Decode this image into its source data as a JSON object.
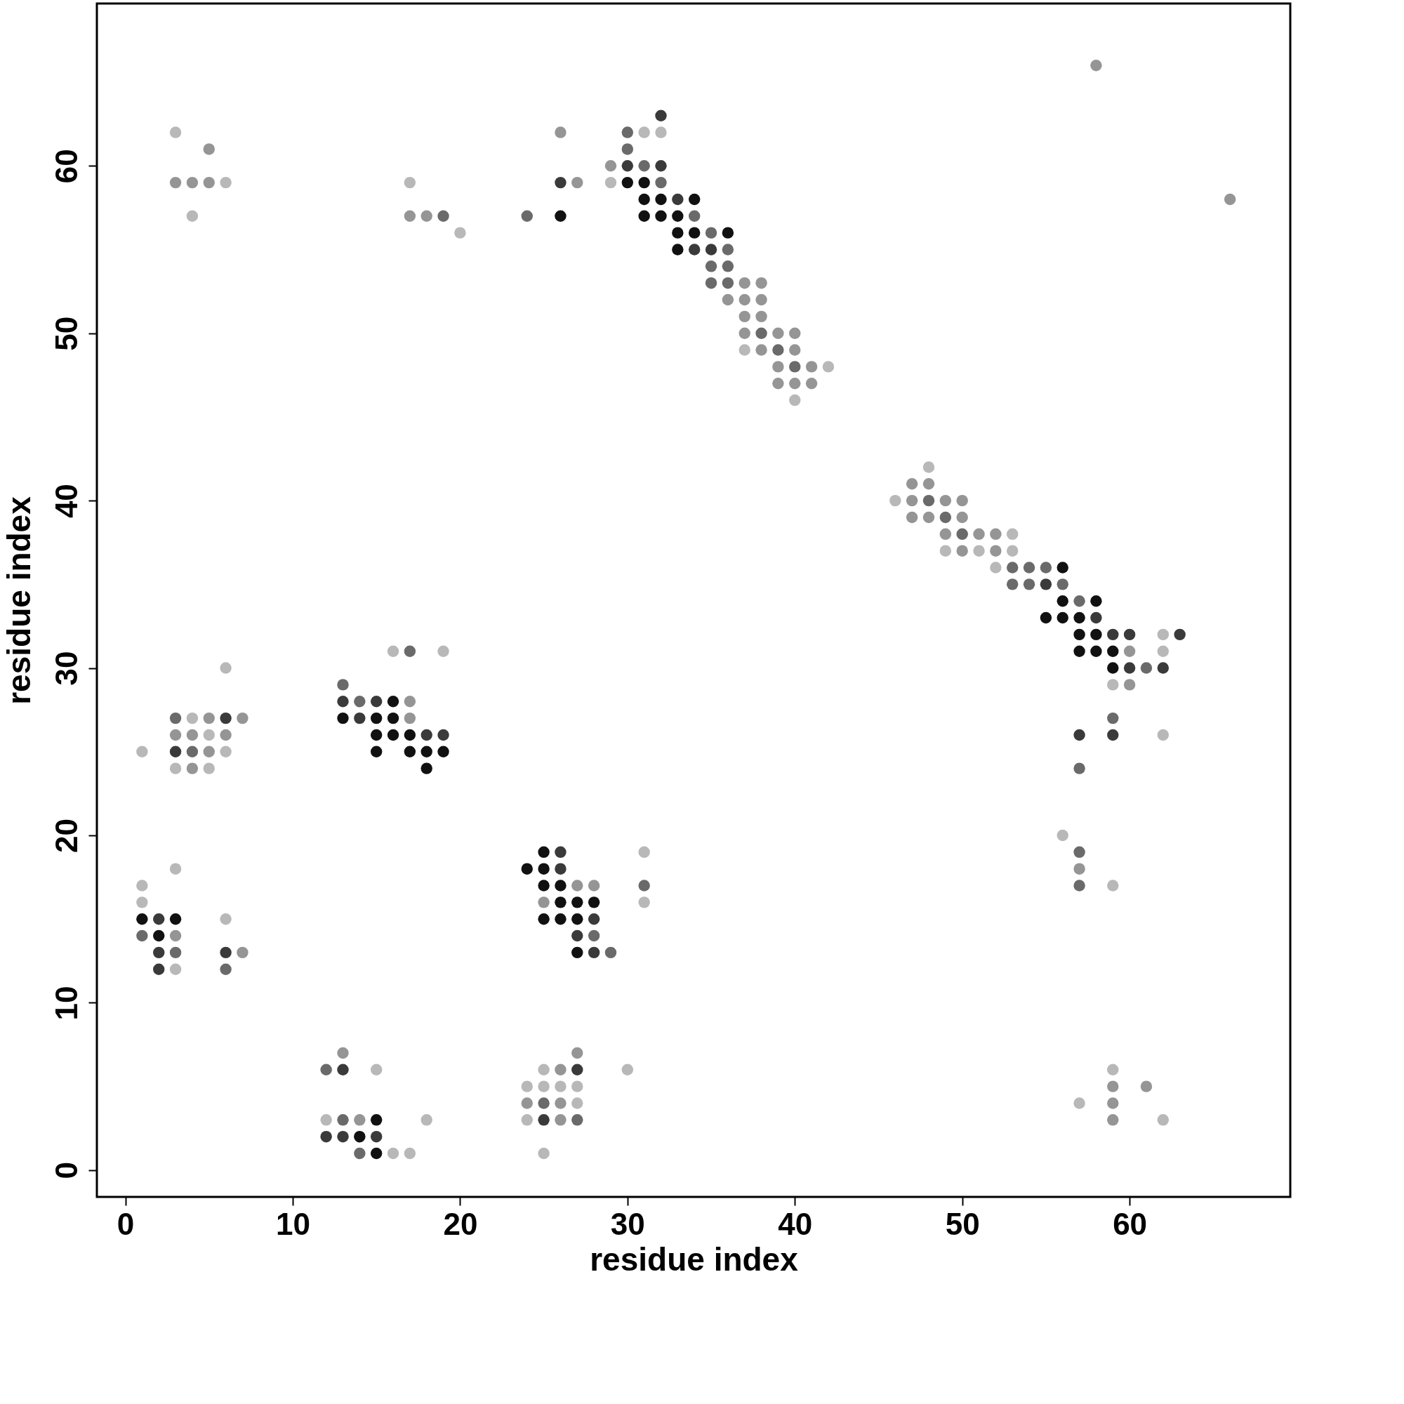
{
  "chart_data": {
    "type": "scatter",
    "xlabel": "residue index",
    "ylabel": "residue index",
    "xlim": [
      -1.7,
      69.6
    ],
    "ylim": [
      -1.6,
      69.7
    ],
    "xticks": [
      0,
      10,
      20,
      30,
      40,
      50,
      60
    ],
    "yticks": [
      0,
      10,
      20,
      30,
      40,
      50,
      60
    ],
    "grid": false,
    "legend": false,
    "marker": "circle",
    "series": [
      {
        "color": "#111111",
        "x": [
          26,
          30,
          31,
          31,
          32,
          34,
          31,
          32,
          33,
          33,
          34,
          36,
          33,
          56,
          56,
          58,
          55,
          56,
          57,
          57,
          58,
          57,
          58,
          59,
          59,
          16,
          13,
          15,
          16,
          15,
          16,
          17,
          15,
          17,
          18,
          19,
          18,
          1,
          3,
          2,
          25,
          24,
          25,
          25,
          26,
          26,
          27,
          28,
          25,
          26,
          27,
          27,
          15,
          14,
          15
        ],
        "values": [
          57,
          59,
          59,
          58,
          58,
          58,
          57,
          57,
          57,
          56,
          56,
          56,
          55,
          36,
          34,
          34,
          33,
          33,
          33,
          32,
          32,
          31,
          31,
          31,
          30,
          28,
          27,
          27,
          27,
          26,
          26,
          26,
          25,
          25,
          25,
          25,
          24,
          15,
          15,
          14,
          19,
          18,
          18,
          17,
          17,
          16,
          16,
          16,
          15,
          15,
          15,
          13,
          3,
          2,
          1
        ]
      },
      {
        "color": "#3a3a3a",
        "x": [
          26,
          32,
          30,
          32,
          33,
          34,
          35,
          55,
          58,
          59,
          60,
          63,
          60,
          62,
          57,
          59,
          13,
          14,
          15,
          18,
          19,
          3,
          6,
          2,
          2,
          6,
          2,
          26,
          26,
          28,
          27,
          28,
          13,
          12,
          13,
          15,
          25,
          27
        ],
        "values": [
          59,
          63,
          60,
          60,
          58,
          55,
          55,
          35,
          33,
          32,
          32,
          32,
          30,
          30,
          26,
          26,
          28,
          27,
          28,
          26,
          26,
          25,
          27,
          15,
          13,
          13,
          12,
          19,
          18,
          15,
          14,
          13,
          6,
          2,
          2,
          2,
          3,
          6
        ]
      },
      {
        "color": "#6a6a6a",
        "x": [
          19,
          24,
          30,
          30,
          31,
          32,
          34,
          35,
          36,
          35,
          36,
          35,
          36,
          38,
          39,
          40,
          48,
          49,
          50,
          53,
          54,
          55,
          53,
          54,
          56,
          57,
          61,
          59,
          57,
          57,
          57,
          13,
          14,
          17,
          3,
          4,
          1,
          3,
          6,
          31,
          28,
          29,
          12,
          25,
          14,
          13,
          27
        ],
        "values": [
          57,
          57,
          62,
          61,
          60,
          59,
          57,
          56,
          55,
          54,
          54,
          53,
          53,
          50,
          49,
          48,
          40,
          39,
          38,
          36,
          36,
          36,
          35,
          35,
          35,
          34,
          30,
          27,
          24,
          19,
          17,
          29,
          28,
          31,
          27,
          25,
          14,
          13,
          12,
          17,
          14,
          13,
          6,
          4,
          1,
          3,
          3
        ]
      },
      {
        "color": "#959595",
        "x": [
          5,
          3,
          4,
          5,
          17,
          18,
          26,
          27,
          29,
          37,
          38,
          36,
          37,
          38,
          37,
          38,
          37,
          39,
          40,
          38,
          40,
          39,
          41,
          39,
          40,
          41,
          47,
          48,
          47,
          49,
          50,
          47,
          48,
          50,
          49,
          51,
          52,
          50,
          52,
          60,
          60,
          57,
          59,
          61,
          59,
          59,
          58,
          66,
          17,
          17,
          7,
          3,
          4,
          6,
          5,
          4,
          3,
          7,
          27,
          28,
          25,
          26,
          13,
          24,
          26,
          14,
          26,
          27,
          5
        ],
        "values": [
          61,
          59,
          59,
          59,
          57,
          57,
          62,
          59,
          60,
          53,
          53,
          52,
          52,
          52,
          51,
          51,
          50,
          50,
          50,
          49,
          49,
          48,
          48,
          47,
          47,
          47,
          41,
          41,
          40,
          40,
          40,
          39,
          39,
          39,
          38,
          38,
          38,
          37,
          37,
          31,
          29,
          18,
          5,
          5,
          4,
          3,
          66,
          58,
          28,
          27,
          27,
          26,
          26,
          26,
          25,
          24,
          14,
          13,
          17,
          17,
          16,
          6,
          7,
          4,
          4,
          3,
          3,
          7,
          27
        ]
      },
      {
        "color": "#b8b8b8",
        "x": [
          3,
          6,
          4,
          17,
          20,
          31,
          32,
          29,
          42,
          40,
          37,
          48,
          46,
          49,
          51,
          53,
          52,
          53,
          62,
          62,
          59,
          62,
          56,
          59,
          59,
          57,
          62,
          16,
          19,
          6,
          4,
          5,
          1,
          6,
          3,
          5,
          1,
          3,
          1,
          6,
          3,
          31,
          31,
          15,
          25,
          25,
          26,
          27,
          24,
          27,
          24,
          30,
          12,
          18,
          16,
          17,
          25
        ],
        "values": [
          62,
          59,
          57,
          59,
          56,
          62,
          62,
          59,
          48,
          46,
          49,
          42,
          40,
          37,
          37,
          37,
          36,
          38,
          32,
          31,
          29,
          26,
          20,
          17,
          6,
          4,
          3,
          31,
          31,
          30,
          27,
          26,
          25,
          25,
          24,
          24,
          17,
          18,
          16,
          15,
          12,
          19,
          16,
          6,
          6,
          5,
          5,
          5,
          5,
          4,
          3,
          6,
          3,
          3,
          1,
          1,
          1
        ]
      }
    ]
  }
}
